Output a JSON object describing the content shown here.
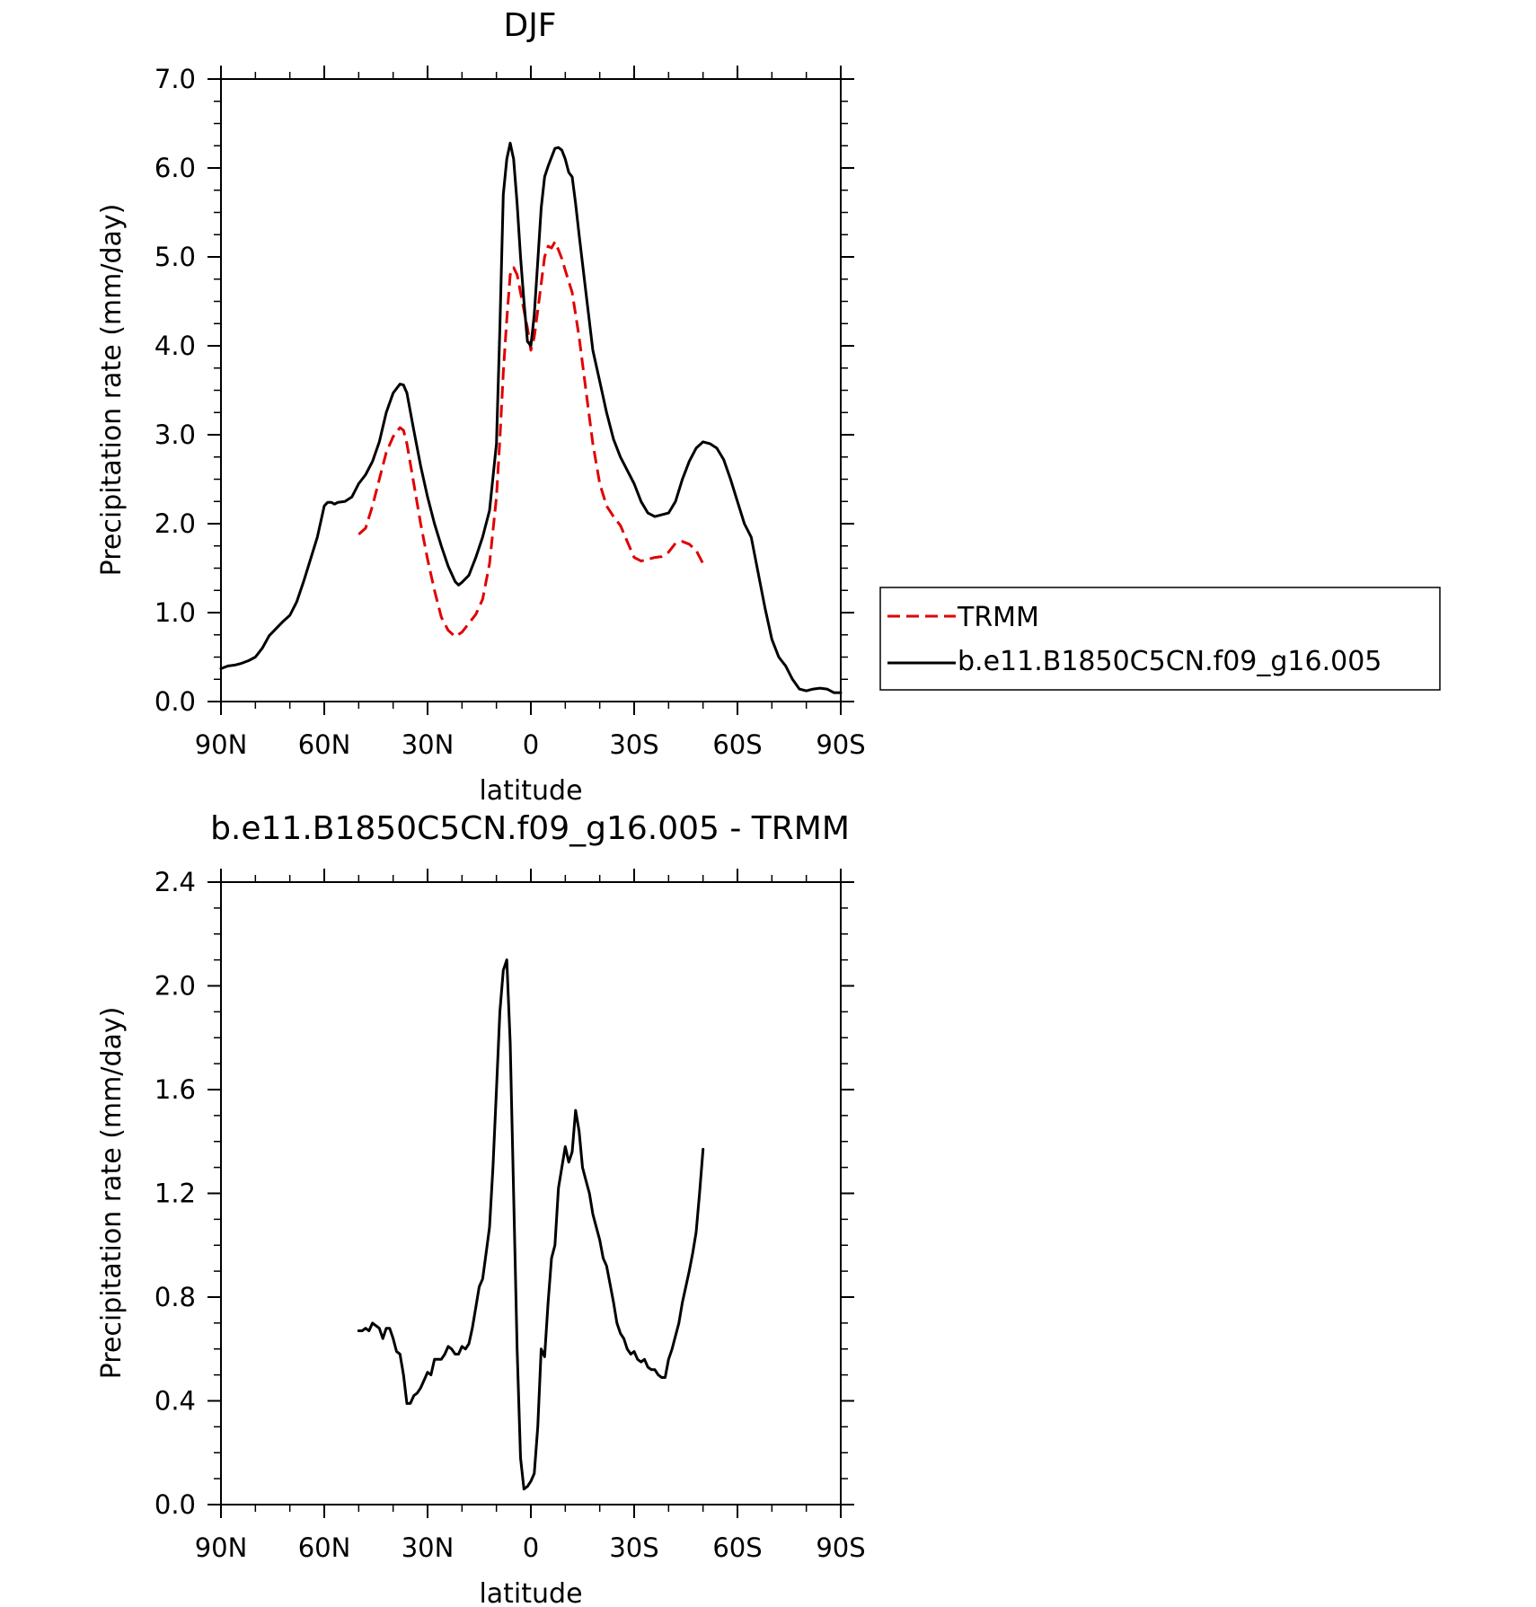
{
  "chart_data": [
    {
      "type": "line",
      "title": "DJF",
      "xlabel": "latitude",
      "ylabel": "Precipitation rate (mm/day)",
      "xlim": [
        90,
        -90
      ],
      "ylim": [
        0,
        7
      ],
      "x_ticks": [
        90,
        60,
        30,
        0,
        -30,
        -60,
        -90
      ],
      "x_tick_labels": [
        "90N",
        "60N",
        "30N",
        "0",
        "30S",
        "60S",
        "90S"
      ],
      "y_ticks": [
        0,
        1,
        2,
        3,
        4,
        5,
        6,
        7
      ],
      "y_tick_labels": [
        "0.0",
        "1.0",
        "2.0",
        "3.0",
        "4.0",
        "5.0",
        "6.0",
        "7.0"
      ],
      "grid": false,
      "legend": {
        "placement": "outside-right"
      },
      "series": [
        {
          "name": "TRMM",
          "color": "#e00000",
          "dash": "dashed",
          "x": [
            50,
            48,
            46,
            44,
            42,
            40,
            38,
            37,
            36,
            34,
            32,
            30,
            28,
            26,
            24,
            22,
            20,
            18,
            16,
            14,
            12,
            10,
            9,
            8,
            7,
            6,
            5,
            4,
            3,
            2,
            1,
            0,
            -1,
            -2,
            -3,
            -4,
            -5,
            -6,
            -7,
            -8,
            -9,
            -10,
            -12,
            -14,
            -16,
            -18,
            -20,
            -22,
            -24,
            -26,
            -28,
            -30,
            -32,
            -34,
            -36,
            -38,
            -40,
            -42,
            -44,
            -46,
            -48,
            -50
          ],
          "y": [
            1.88,
            1.95,
            2.2,
            2.5,
            2.8,
            2.98,
            3.08,
            3.05,
            2.9,
            2.45,
            2.0,
            1.6,
            1.25,
            0.95,
            0.8,
            0.73,
            0.78,
            0.88,
            0.98,
            1.15,
            1.55,
            2.3,
            2.95,
            3.7,
            4.3,
            4.8,
            4.88,
            4.8,
            4.6,
            4.4,
            4.2,
            3.95,
            4.1,
            4.4,
            4.7,
            5.0,
            5.12,
            5.1,
            5.17,
            5.08,
            4.98,
            4.85,
            4.6,
            4.1,
            3.5,
            2.9,
            2.45,
            2.2,
            2.08,
            1.98,
            1.8,
            1.62,
            1.58,
            1.6,
            1.62,
            1.63,
            1.68,
            1.78,
            1.8,
            1.77,
            1.7,
            1.55
          ]
        },
        {
          "name": "b.e11.B1850C5CN.f09_g16.005",
          "color": "#000000",
          "dash": "solid",
          "x": [
            90,
            88,
            86,
            84,
            82,
            80,
            78,
            76,
            74,
            72,
            70,
            68,
            66,
            64,
            62,
            60,
            59,
            58,
            57,
            56,
            54,
            52,
            50,
            48,
            46,
            44,
            42,
            40,
            38,
            37,
            36,
            34,
            32,
            30,
            28,
            26,
            24,
            22,
            21,
            20,
            18,
            16,
            14,
            12,
            10,
            9,
            8,
            7,
            6,
            5,
            4,
            3,
            2,
            1,
            0,
            -1,
            -2,
            -3,
            -4,
            -5,
            -6,
            -7,
            -8,
            -9,
            -10,
            -11,
            -12,
            -13,
            -14,
            -16,
            -18,
            -20,
            -22,
            -24,
            -26,
            -28,
            -30,
            -32,
            -34,
            -36,
            -38,
            -40,
            -42,
            -44,
            -46,
            -48,
            -50,
            -52,
            -54,
            -56,
            -58,
            -60,
            -62,
            -64,
            -66,
            -68,
            -70,
            -72,
            -74,
            -76,
            -78,
            -80,
            -82,
            -84,
            -86,
            -88,
            -90
          ],
          "y": [
            0.37,
            0.4,
            0.41,
            0.43,
            0.46,
            0.5,
            0.6,
            0.74,
            0.82,
            0.9,
            0.97,
            1.12,
            1.35,
            1.6,
            1.85,
            2.2,
            2.24,
            2.24,
            2.22,
            2.24,
            2.25,
            2.3,
            2.45,
            2.55,
            2.7,
            2.92,
            3.25,
            3.47,
            3.57,
            3.56,
            3.47,
            3.05,
            2.65,
            2.3,
            2.0,
            1.75,
            1.52,
            1.35,
            1.31,
            1.34,
            1.42,
            1.62,
            1.85,
            2.15,
            2.9,
            4.2,
            5.7,
            6.1,
            6.28,
            6.1,
            5.6,
            5.0,
            4.5,
            4.05,
            4.0,
            4.35,
            4.95,
            5.55,
            5.9,
            6.02,
            6.12,
            6.22,
            6.23,
            6.2,
            6.1,
            5.95,
            5.9,
            5.6,
            5.25,
            4.6,
            3.95,
            3.6,
            3.25,
            2.95,
            2.75,
            2.6,
            2.45,
            2.25,
            2.12,
            2.08,
            2.1,
            2.12,
            2.25,
            2.5,
            2.7,
            2.85,
            2.92,
            2.9,
            2.85,
            2.72,
            2.5,
            2.25,
            2.0,
            1.85,
            1.45,
            1.05,
            0.7,
            0.5,
            0.4,
            0.25,
            0.14,
            0.12,
            0.14,
            0.15,
            0.14,
            0.1,
            0.1
          ]
        }
      ]
    },
    {
      "type": "line",
      "title": "b.e11.B1850C5CN.f09_g16.005 - TRMM",
      "xlabel": "latitude",
      "ylabel": "Precipitation rate (mm/day)",
      "xlim": [
        90,
        -90
      ],
      "ylim": [
        0,
        2.4
      ],
      "x_ticks": [
        90,
        60,
        30,
        0,
        -30,
        -60,
        -90
      ],
      "x_tick_labels": [
        "90N",
        "60N",
        "30N",
        "0",
        "30S",
        "60S",
        "90S"
      ],
      "y_ticks": [
        0,
        0.4,
        0.8,
        1.2,
        1.6,
        2.0,
        2.4
      ],
      "y_tick_labels": [
        "0.0",
        "0.4",
        "0.8",
        "1.2",
        "1.6",
        "2.0",
        "2.4"
      ],
      "grid": false,
      "series": [
        {
          "color": "#000000",
          "dash": "solid",
          "x": [
            50,
            49,
            48,
            47,
            46,
            45,
            44,
            43,
            42,
            41,
            40,
            39,
            38,
            37,
            36,
            35,
            34,
            33,
            32,
            31,
            30,
            29,
            28,
            27,
            26,
            25,
            24,
            23,
            22,
            21,
            20,
            19,
            18,
            17,
            16,
            15,
            14,
            13,
            12,
            11,
            10,
            9,
            8,
            7,
            6,
            5,
            4,
            3,
            2,
            1,
            0,
            -1,
            -2,
            -3,
            -4,
            -5,
            -6,
            -7,
            -8,
            -9,
            -10,
            -11,
            -12,
            -13,
            -14,
            -15,
            -16,
            -17,
            -18,
            -19,
            -20,
            -21,
            -22,
            -23,
            -24,
            -25,
            -26,
            -27,
            -28,
            -29,
            -30,
            -31,
            -32,
            -33,
            -34,
            -35,
            -36,
            -37,
            -38,
            -39,
            -40,
            -41,
            -42,
            -43,
            -44,
            -45,
            -46,
            -47,
            -48,
            -49,
            -50
          ],
          "y": [
            0.67,
            0.67,
            0.68,
            0.67,
            0.7,
            0.69,
            0.68,
            0.64,
            0.68,
            0.68,
            0.64,
            0.59,
            0.58,
            0.5,
            0.39,
            0.39,
            0.42,
            0.43,
            0.45,
            0.48,
            0.51,
            0.5,
            0.56,
            0.56,
            0.56,
            0.58,
            0.61,
            0.6,
            0.58,
            0.58,
            0.61,
            0.6,
            0.62,
            0.68,
            0.76,
            0.84,
            0.87,
            0.97,
            1.07,
            1.3,
            1.6,
            1.9,
            2.06,
            2.1,
            1.78,
            1.2,
            0.6,
            0.18,
            0.06,
            0.07,
            0.09,
            0.12,
            0.3,
            0.6,
            0.57,
            0.78,
            0.95,
            1.0,
            1.22,
            1.3,
            1.38,
            1.32,
            1.36,
            1.52,
            1.44,
            1.3,
            1.25,
            1.2,
            1.12,
            1.07,
            1.02,
            0.95,
            0.92,
            0.85,
            0.78,
            0.7,
            0.66,
            0.64,
            0.6,
            0.58,
            0.59,
            0.56,
            0.55,
            0.56,
            0.53,
            0.52,
            0.52,
            0.5,
            0.49,
            0.49,
            0.56,
            0.6,
            0.65,
            0.7,
            0.78,
            0.84,
            0.9,
            0.97,
            1.05,
            1.2,
            1.37
          ]
        }
      ]
    }
  ]
}
